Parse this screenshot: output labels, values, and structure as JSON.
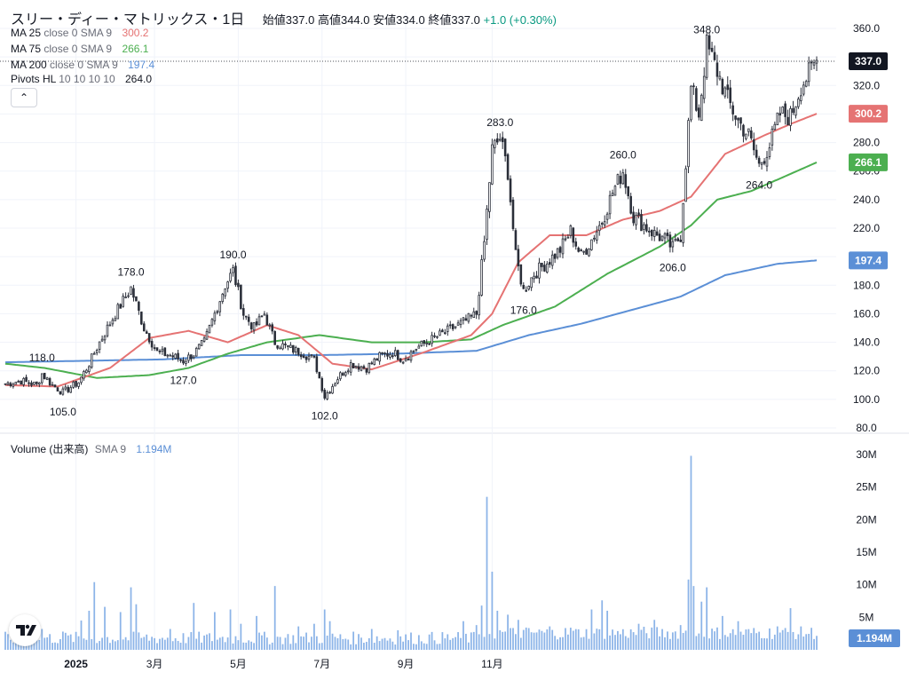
{
  "header": {
    "title": "スリー・ディー・マトリックス・1日",
    "ohlc": {
      "open_label": "始値",
      "open": "337.0",
      "high_label": "高値",
      "high": "344.0",
      "low_label": "安値",
      "low": "334.0",
      "close_label": "終値",
      "close": "337.0",
      "change": "+1.0 (+0.30%)"
    }
  },
  "indicators": [
    {
      "name": "MA 25",
      "params": "close 0 SMA 9",
      "value": "300.2",
      "color": "#e57373"
    },
    {
      "name": "MA 75",
      "params": "close 0 SMA 9",
      "value": "266.1",
      "color": "#4caf50"
    },
    {
      "name": "MA 200",
      "params": "close 0 SMA 9",
      "value": "197.4",
      "color": "#5b8fd6"
    },
    {
      "name": "Pivots HL",
      "params": "10 10 10 10",
      "value": "264.0",
      "color": "#131722"
    }
  ],
  "volume_legend": {
    "name": "Volume (出来高)",
    "params": "SMA 9",
    "value": "1.194M"
  },
  "collapse_icon": "chevron-up-icon",
  "colors": {
    "up": "#089981",
    "down": "#131722",
    "candle_up_fill": "#ffffff",
    "candle_dark": "#2a2e39",
    "volume": "#8cb4e8",
    "grid": "#f0f3fa",
    "text": "#131722"
  },
  "chart_data": {
    "type": "candlestick",
    "ylim": [
      80,
      360
    ],
    "y_ticks": [
      "80.0",
      "100.0",
      "120.0",
      "140.0",
      "160.0",
      "180.0",
      "200.0",
      "220.0",
      "240.0",
      "260.0",
      "280.0",
      "300.0",
      "320.0",
      "340.0",
      "360.0"
    ],
    "x_ticks": [
      "2025",
      "3月",
      "5月",
      "7月",
      "9月",
      "11月"
    ],
    "volume_ticks": [
      "5M",
      "10M",
      "15M",
      "20M",
      "25M",
      "30M"
    ],
    "price_badges": [
      {
        "label": "337.0",
        "value": 337.0,
        "color": "#131722"
      },
      {
        "label": "300.2",
        "value": 300.2,
        "color": "#e57373"
      },
      {
        "label": "266.1",
        "value": 266.1,
        "color": "#4caf50"
      },
      {
        "label": "197.4",
        "value": 197.4,
        "color": "#5b8fd6"
      }
    ],
    "volume_badge": "1.194M",
    "pivots": [
      {
        "label": "118.0",
        "idx": 14,
        "type": "high",
        "price": 118.0
      },
      {
        "label": "105.0",
        "idx": 22,
        "type": "low",
        "price": 105.0
      },
      {
        "label": "178.0",
        "idx": 48,
        "type": "high",
        "price": 178.0
      },
      {
        "label": "127.0",
        "idx": 68,
        "type": "low",
        "price": 127.0
      },
      {
        "label": "190.0",
        "idx": 87,
        "type": "high",
        "price": 190.0
      },
      {
        "label": "102.0",
        "idx": 122,
        "type": "low",
        "price": 102.0
      },
      {
        "label": "283.0",
        "idx": 189,
        "type": "high",
        "price": 283.0
      },
      {
        "label": "176.0",
        "idx": 198,
        "type": "low",
        "price": 176.0
      },
      {
        "label": "260.0",
        "idx": 236,
        "type": "high",
        "price": 260.0
      },
      {
        "label": "206.0",
        "idx": 255,
        "type": "low",
        "price": 206.0
      },
      {
        "label": "348.0",
        "idx": 268,
        "type": "high",
        "price": 348.0
      },
      {
        "label": "264.0",
        "idx": 288,
        "type": "low",
        "price": 264.0
      }
    ],
    "anchors": [
      [
        0,
        111
      ],
      [
        6,
        113
      ],
      [
        12,
        110
      ],
      [
        14,
        118
      ],
      [
        18,
        110
      ],
      [
        22,
        105
      ],
      [
        28,
        112
      ],
      [
        32,
        125
      ],
      [
        36,
        140
      ],
      [
        42,
        160
      ],
      [
        48,
        178
      ],
      [
        53,
        150
      ],
      [
        58,
        133
      ],
      [
        63,
        131
      ],
      [
        68,
        127
      ],
      [
        72,
        132
      ],
      [
        76,
        140
      ],
      [
        80,
        160
      ],
      [
        84,
        180
      ],
      [
        87,
        190
      ],
      [
        91,
        160
      ],
      [
        95,
        150
      ],
      [
        99,
        160
      ],
      [
        103,
        140
      ],
      [
        108,
        136
      ],
      [
        113,
        133
      ],
      [
        118,
        128
      ],
      [
        122,
        102
      ],
      [
        127,
        115
      ],
      [
        132,
        125
      ],
      [
        138,
        122
      ],
      [
        143,
        130
      ],
      [
        148,
        133
      ],
      [
        152,
        128
      ],
      [
        157,
        136
      ],
      [
        162,
        141
      ],
      [
        166,
        145
      ],
      [
        171,
        150
      ],
      [
        176,
        155
      ],
      [
        180,
        160
      ],
      [
        183,
        210
      ],
      [
        186,
        275
      ],
      [
        189,
        283
      ],
      [
        192,
        260
      ],
      [
        195,
        200
      ],
      [
        198,
        176
      ],
      [
        202,
        188
      ],
      [
        207,
        196
      ],
      [
        212,
        205
      ],
      [
        216,
        218
      ],
      [
        220,
        200
      ],
      [
        224,
        212
      ],
      [
        228,
        225
      ],
      [
        232,
        245
      ],
      [
        236,
        260
      ],
      [
        240,
        228
      ],
      [
        244,
        222
      ],
      [
        248,
        216
      ],
      [
        252,
        212
      ],
      [
        255,
        206
      ],
      [
        258,
        215
      ],
      [
        262,
        318
      ],
      [
        265,
        300
      ],
      [
        268,
        348
      ],
      [
        272,
        330
      ],
      [
        276,
        310
      ],
      [
        280,
        295
      ],
      [
        284,
        285
      ],
      [
        288,
        264
      ],
      [
        292,
        278
      ],
      [
        296,
        300
      ],
      [
        300,
        298
      ],
      [
        304,
        320
      ],
      [
        307,
        328
      ],
      [
        310,
        337
      ]
    ],
    "ma25_anchors": [
      [
        0,
        110
      ],
      [
        20,
        109
      ],
      [
        40,
        122
      ],
      [
        55,
        143
      ],
      [
        70,
        148
      ],
      [
        85,
        140
      ],
      [
        100,
        152
      ],
      [
        112,
        145
      ],
      [
        125,
        125
      ],
      [
        140,
        121
      ],
      [
        160,
        133
      ],
      [
        178,
        145
      ],
      [
        186,
        160
      ],
      [
        196,
        196
      ],
      [
        208,
        215
      ],
      [
        222,
        215
      ],
      [
        236,
        226
      ],
      [
        250,
        232
      ],
      [
        262,
        242
      ],
      [
        275,
        272
      ],
      [
        290,
        285
      ],
      [
        300,
        293
      ],
      [
        310,
        300.2
      ]
    ],
    "ma75_anchors": [
      [
        0,
        125
      ],
      [
        15,
        122
      ],
      [
        35,
        115
      ],
      [
        55,
        117
      ],
      [
        70,
        122
      ],
      [
        85,
        132
      ],
      [
        100,
        140
      ],
      [
        120,
        145
      ],
      [
        140,
        140
      ],
      [
        160,
        140
      ],
      [
        178,
        142
      ],
      [
        190,
        152
      ],
      [
        210,
        165
      ],
      [
        230,
        188
      ],
      [
        250,
        207
      ],
      [
        262,
        222
      ],
      [
        272,
        240
      ],
      [
        285,
        246
      ],
      [
        300,
        258
      ],
      [
        310,
        266.1
      ]
    ],
    "ma200_anchors": [
      [
        0,
        126
      ],
      [
        30,
        127
      ],
      [
        60,
        128
      ],
      [
        90,
        131
      ],
      [
        120,
        131
      ],
      [
        150,
        132
      ],
      [
        180,
        134
      ],
      [
        200,
        145
      ],
      [
        220,
        153
      ],
      [
        240,
        163
      ],
      [
        258,
        172
      ],
      [
        275,
        187
      ],
      [
        295,
        195
      ],
      [
        310,
        197.4
      ]
    ],
    "volume_spikes": [
      [
        14,
        3.2
      ],
      [
        22,
        2.8
      ],
      [
        29,
        4.5
      ],
      [
        32,
        6.0
      ],
      [
        34,
        10.4
      ],
      [
        38,
        6.6
      ],
      [
        44,
        5.8
      ],
      [
        48,
        9.6
      ],
      [
        50,
        7.0
      ],
      [
        63,
        3.2
      ],
      [
        72,
        7.2
      ],
      [
        80,
        5.8
      ],
      [
        86,
        6.2
      ],
      [
        90,
        4.0
      ],
      [
        96,
        5.2
      ],
      [
        103,
        9.8
      ],
      [
        112,
        3.6
      ],
      [
        118,
        4.0
      ],
      [
        122,
        6.2
      ],
      [
        124,
        4.4
      ],
      [
        140,
        3.2
      ],
      [
        150,
        3.0
      ],
      [
        175,
        4.4
      ],
      [
        180,
        3.8
      ],
      [
        182,
        6.8
      ],
      [
        184,
        23.5
      ],
      [
        186,
        12.0
      ],
      [
        188,
        6.0
      ],
      [
        192,
        5.4
      ],
      [
        196,
        4.6
      ],
      [
        208,
        3.6
      ],
      [
        216,
        3.4
      ],
      [
        224,
        6.2
      ],
      [
        228,
        7.6
      ],
      [
        230,
        6.0
      ],
      [
        242,
        4.0
      ],
      [
        248,
        4.6
      ],
      [
        258,
        3.8
      ],
      [
        261,
        10.8
      ],
      [
        262,
        29.8
      ],
      [
        263,
        9.8
      ],
      [
        266,
        7.4
      ],
      [
        268,
        9.6
      ],
      [
        274,
        5.2
      ],
      [
        280,
        4.4
      ],
      [
        295,
        3.6
      ],
      [
        300,
        6.4
      ]
    ]
  }
}
